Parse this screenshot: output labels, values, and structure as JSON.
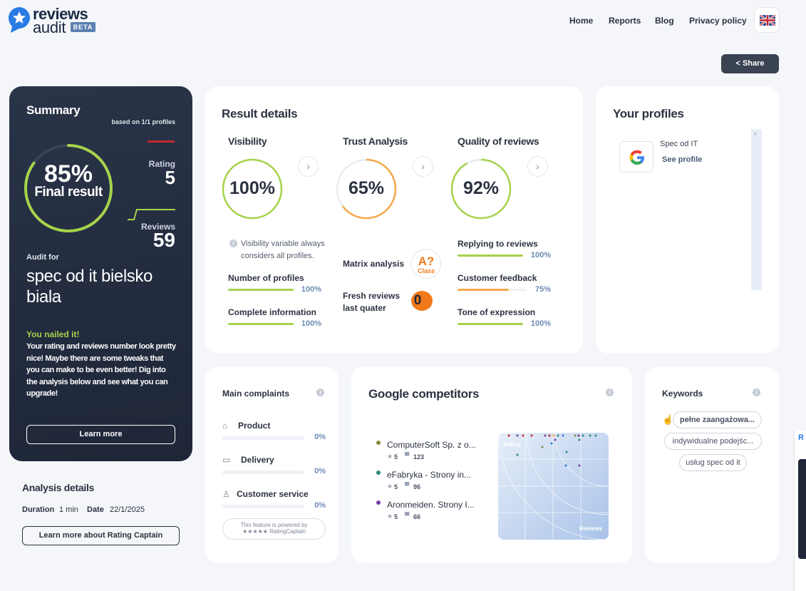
{
  "brand": {
    "name_line1": "reviews",
    "name_line2": "audit",
    "badge": "BETA"
  },
  "nav": {
    "home": "Home",
    "reports": "Reports",
    "blog": "Blog",
    "privacy": "Privacy policy"
  },
  "share": {
    "label": "Share"
  },
  "summary": {
    "title": "Summary",
    "based_on": "based on 1/1 profiles",
    "final_percent": "85%",
    "final_label": "Final result",
    "final_value": 0.85,
    "rating_label": "Rating",
    "rating_value": "5",
    "reviews_label": "Reviews",
    "reviews_value": "59",
    "audit_for_label": "Audit for",
    "audit_for_name": "spec od it bielsko biala",
    "nailed_title": "You nailed it!",
    "nailed_text": "Your rating and reviews number look pretty nice! Maybe there are some tweaks that you can make to be even better! Dig into the analysis below and see what you can upgrade!",
    "learn_more": "Learn more"
  },
  "analysis": {
    "title": "Analysis details",
    "duration_label": "Duration",
    "duration_value": "1 min",
    "date_label": "Date",
    "date_value": "22/1/2025",
    "rating_captain_button": "Learn more about Rating Captain"
  },
  "result_details": {
    "title": "Result details",
    "visibility": {
      "title": "Visibility",
      "percent": "100%",
      "value": 1.0,
      "note": "Visibility variable always considers all profiles.",
      "metrics": [
        {
          "label": "Number of profiles",
          "percent": "100%",
          "value": 1.0
        },
        {
          "label": "Complete information",
          "percent": "100%",
          "value": 1.0
        }
      ]
    },
    "trust": {
      "title": "Trust Analysis",
      "percent": "65%",
      "value": 0.65,
      "matrix_label": "Matrix analysis",
      "matrix_badge": "A?",
      "matrix_badge_sub": "Class",
      "fresh_label": "Fresh reviews last quater",
      "fresh_value": "0"
    },
    "quality": {
      "title": "Quality of reviews",
      "percent": "92%",
      "value": 0.92,
      "metrics": [
        {
          "label": "Replying to reviews",
          "percent": "100%",
          "value": 1.0
        },
        {
          "label": "Customer feedback",
          "percent": "75%",
          "value": 0.75
        },
        {
          "label": "Tone of expression",
          "percent": "100%",
          "value": 1.0
        }
      ]
    }
  },
  "profiles": {
    "title": "Your profiles",
    "items": [
      {
        "name": "Spec od IT",
        "link": "See profile"
      }
    ]
  },
  "complaints": {
    "title": "Main complaints",
    "items": [
      {
        "label": "Product",
        "percent": "0%",
        "value": 0
      },
      {
        "label": "Delivery",
        "percent": "0%",
        "value": 0
      },
      {
        "label": "Customer service",
        "percent": "0%",
        "value": 0
      }
    ],
    "powered_line1": "This feature is powered by",
    "powered_line2": "RatingCaptain"
  },
  "competitors": {
    "title": "Google competitors",
    "items": [
      {
        "name": "ComputerSoft Sp. z o...",
        "rating": "5",
        "reviews": "123",
        "color": "#8a8a3a"
      },
      {
        "name": "eFabryka - Strony in...",
        "rating": "5",
        "reviews": "96",
        "color": "#2a8a7a"
      },
      {
        "name": "Aronmeiden. Strony I...",
        "rating": "5",
        "reviews": "66",
        "color": "#7a3aa0"
      }
    ],
    "plot_x_label": "Reviews",
    "plot_y_label": "Rating"
  },
  "keywords": {
    "title": "Keywords",
    "items": [
      "pełne zaangażowa...",
      "indywidualne podejśc...",
      "usług spec od it"
    ]
  },
  "colors": {
    "green": "#a6d34a",
    "orange": "#f5a84a",
    "dark": "#1e2638",
    "accent": "#2a7be4",
    "red": "#c0282d"
  }
}
